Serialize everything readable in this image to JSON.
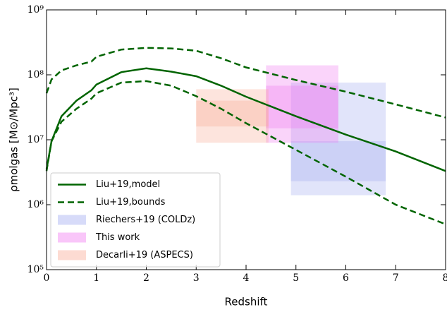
{
  "chart_data": {
    "type": "line",
    "xlabel": "Redshift",
    "ylabel": "ρmolgas [M⊙/Mpc³]",
    "xlim": [
      0,
      8
    ],
    "xticks": [
      0,
      1,
      2,
      3,
      4,
      5,
      6,
      7,
      8
    ],
    "ylim": [
      100000,
      1000000000
    ],
    "log_y": true,
    "yticks": [
      {
        "value": 100000,
        "label": "10⁵"
      },
      {
        "value": 1000000,
        "label": "10⁶"
      },
      {
        "value": 10000000,
        "label": "10⁷"
      },
      {
        "value": 100000000,
        "label": "10⁸"
      },
      {
        "value": 1000000000,
        "label": "10⁹"
      }
    ],
    "legend": "lower left",
    "x": [
      0,
      0.1,
      0.3,
      0.6,
      0.9,
      1,
      1.5,
      2,
      2.5,
      3,
      3.5,
      4,
      5,
      6,
      7,
      8
    ],
    "series": [
      {
        "name": "Liu+19,model",
        "color": "#006400",
        "style": "solid",
        "values": [
          3500000,
          9500000,
          23000000,
          40000000,
          58000000,
          71000000,
          110000000,
          126000000,
          112000000,
          95000000,
          68000000,
          46000000,
          23000000,
          12000000,
          6600000,
          3300000
        ]
      },
      {
        "name": "Liu+19,bounds",
        "color": "#006400",
        "style": "dashed",
        "upper": [
          52000000,
          85000000,
          117000000,
          140000000,
          160000000,
          190000000,
          245000000,
          260000000,
          255000000,
          235000000,
          180000000,
          130000000,
          83000000,
          55000000,
          35000000,
          22000000
        ],
        "lower": [
          3300000,
          9500000,
          19000000,
          30000000,
          43000000,
          52000000,
          76000000,
          80000000,
          68000000,
          47000000,
          30000000,
          18000000,
          7000000,
          2700000,
          1000000,
          500000
        ]
      }
    ],
    "regions": [
      {
        "name": "Riechers+19 (COLDz)",
        "color": "#9aa6f0",
        "boxes": [
          {
            "x": [
              4.9,
              6.8
            ],
            "y": [
              1400000,
              76000000
            ]
          },
          {
            "x": [
              4.9,
              6.8
            ],
            "y": [
              2300000,
              9500000
            ]
          }
        ]
      },
      {
        "name": "This work",
        "color": "#f070f0",
        "boxes": [
          {
            "x": [
              4.4,
              5.85
            ],
            "y": [
              9000000,
              140000000
            ]
          },
          {
            "x": [
              4.4,
              5.85
            ],
            "y": [
              15000000,
              68000000
            ]
          }
        ]
      },
      {
        "name": "Decarli+19 (ASPECS)",
        "color": "#f9a58f",
        "boxes": [
          {
            "x": [
              3.0,
              4.45
            ],
            "y": [
              9000000,
              60000000
            ]
          },
          {
            "x": [
              3.0,
              4.45
            ],
            "y": [
              16000000,
              40000000
            ]
          }
        ]
      }
    ]
  }
}
